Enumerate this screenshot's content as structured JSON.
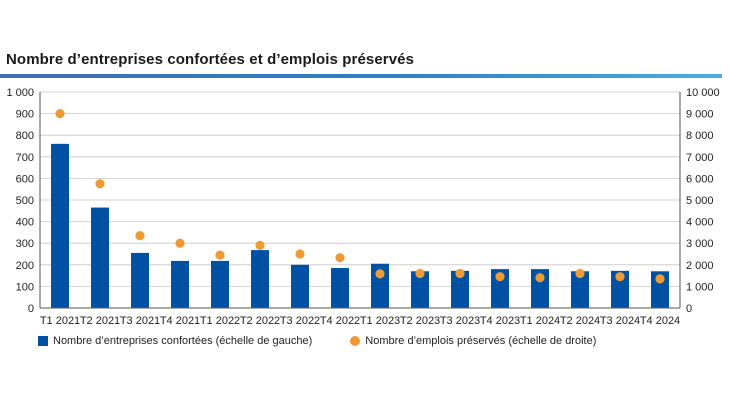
{
  "chart_data": {
    "type": "bar",
    "title": "Nombre d’entreprises confortées et d’emplois préservés",
    "categories": [
      "T1 2021",
      "T2 2021",
      "T3 2021",
      "T4 2021",
      "T1 2022",
      "T2 2022",
      "T3 2022",
      "T4 2022",
      "T1 2023",
      "T2 2023",
      "T3 2023",
      "T4 2023",
      "T1 2024",
      "T2 2024",
      "T3 2024",
      "T4 2024"
    ],
    "series": [
      {
        "name": "Nombre d’entreprises confortées (échelle de gauche)",
        "type": "bar",
        "axis": "left",
        "color": "#0050a4",
        "values": [
          760,
          465,
          255,
          218,
          218,
          268,
          200,
          185,
          205,
          170,
          172,
          180,
          180,
          170,
          172,
          170
        ]
      },
      {
        "name": "Nombre d’emplois préservés (échelle de droite)",
        "type": "scatter",
        "axis": "right",
        "color": "#f29a32",
        "values": [
          9000,
          5750,
          3350,
          3000,
          2450,
          2900,
          2500,
          2330,
          1580,
          1600,
          1600,
          1450,
          1400,
          1600,
          1450,
          1350
        ]
      }
    ],
    "ylim_left": [
      0,
      1000
    ],
    "ylim_right": [
      0,
      10000
    ],
    "yticks_left": [
      "0",
      "100",
      "200",
      "300",
      "400",
      "500",
      "600",
      "700",
      "800",
      "900",
      "1 000"
    ],
    "yticks_right": [
      "0",
      "1 000",
      "2 000",
      "3 000",
      "4 000",
      "5 000",
      "6 000",
      "7 000",
      "8 000",
      "9 000",
      "10 000"
    ],
    "grid": true,
    "legend_position": "bottom"
  }
}
